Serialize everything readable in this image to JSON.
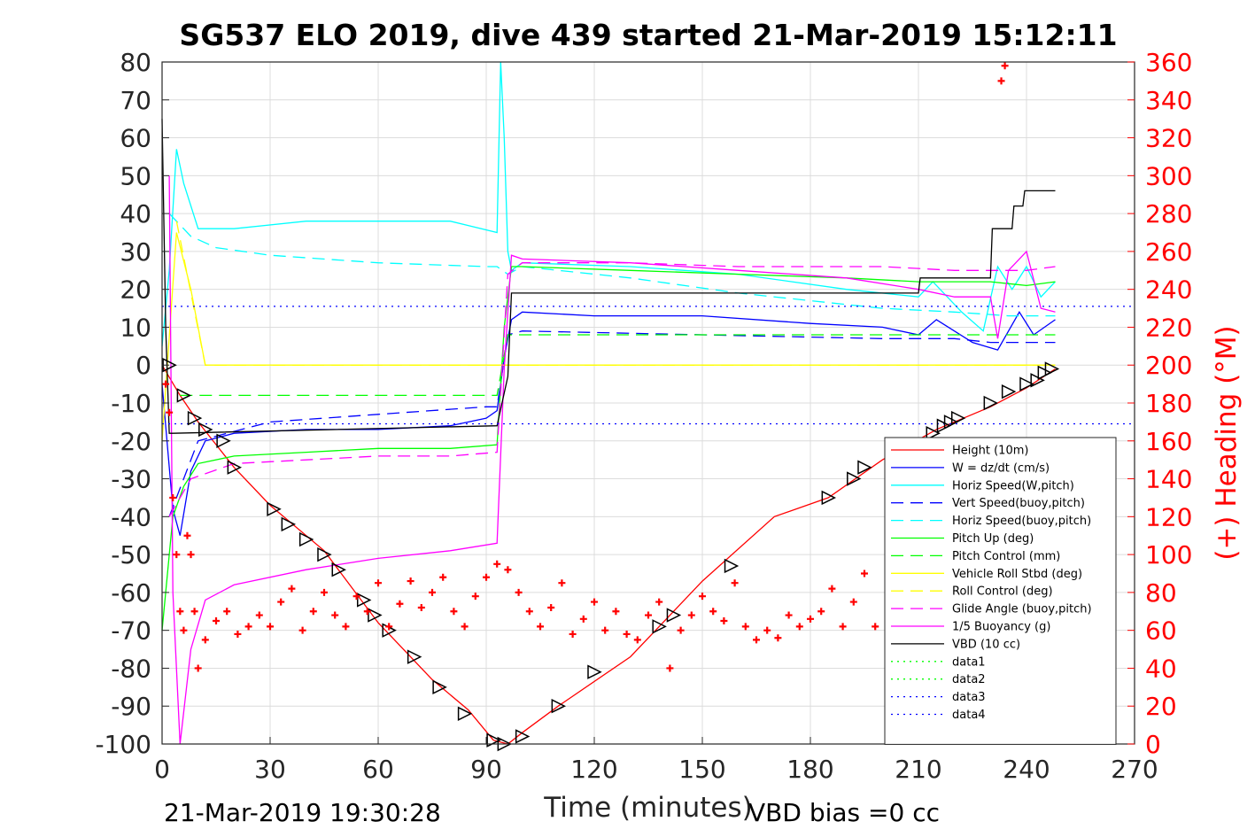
{
  "chart_data": {
    "type": "line",
    "title": "SG537 ELO 2019, dive 439 started 21-Mar-2019 15:12:11",
    "xlabel": "Time (minutes)",
    "ylabel": "",
    "y2label": "(+) Heading (°M)",
    "xlim": [
      0,
      270
    ],
    "ylim": [
      -100,
      80
    ],
    "y2lim": [
      0,
      360
    ],
    "xticks": [
      "0",
      "30",
      "60",
      "90",
      "120",
      "150",
      "180",
      "210",
      "240",
      "270"
    ],
    "yticks": [
      "80",
      "70",
      "60",
      "50",
      "40",
      "30",
      "20",
      "10",
      "0",
      "-10",
      "-20",
      "-30",
      "-40",
      "-50",
      "-60",
      "-70",
      "-80",
      "-90",
      "-100"
    ],
    "y2ticks": [
      "360",
      "340",
      "320",
      "300",
      "280",
      "260",
      "240",
      "220",
      "200",
      "180",
      "160",
      "140",
      "120",
      "100",
      "80",
      "60",
      "40",
      "20",
      "0"
    ],
    "grid": true,
    "legend_position": "lower-right",
    "colors": {
      "height": "#ff0000",
      "w": "#0000ff",
      "horiz_speed": "#00ffff",
      "green": "#00ff00",
      "yellow": "#ffff00",
      "magenta": "#ff00ff",
      "vbd": "#000000",
      "data3": "#0000ff",
      "heading_axis": "#ff0000"
    },
    "series": [
      {
        "name": "Height (10m)",
        "color": "#ff0000",
        "style": "solid",
        "x": [
          0,
          5,
          10,
          20,
          30,
          45,
          60,
          75,
          85,
          92,
          96,
          100,
          110,
          130,
          150,
          170,
          185,
          200,
          215,
          230,
          240,
          248
        ],
        "y": [
          0,
          -8,
          -15,
          -27,
          -37,
          -49,
          -68,
          -83,
          -91,
          -99,
          -100,
          -97,
          -90,
          -77,
          -57,
          -40,
          -35,
          -25,
          -17,
          -11,
          -6,
          -1
        ]
      },
      {
        "name": "W = dz/dt (cm/s)",
        "color": "#0000ff",
        "style": "solid",
        "x": [
          0,
          3,
          5,
          8,
          12,
          20,
          40,
          60,
          80,
          90,
          93,
          95,
          97,
          100,
          120,
          150,
          180,
          200,
          210,
          215,
          225,
          232,
          238,
          242,
          248
        ],
        "y": [
          -5,
          -38,
          -45,
          -28,
          -20,
          -18,
          -17,
          -17,
          -16,
          -14,
          -12,
          2,
          12,
          14,
          13,
          13,
          11,
          10,
          8,
          12,
          6,
          4,
          14,
          8,
          12
        ]
      },
      {
        "name": "Horiz Speed(W,pitch)",
        "color": "#00ffff",
        "style": "solid",
        "x": [
          0,
          2,
          4,
          6,
          10,
          20,
          40,
          60,
          80,
          93,
          94,
          95,
          96,
          97,
          100,
          130,
          160,
          190,
          210,
          214,
          222,
          228,
          232,
          236,
          240,
          244,
          248
        ],
        "y": [
          5,
          25,
          57,
          48,
          36,
          36,
          38,
          38,
          38,
          35,
          80,
          60,
          30,
          25,
          27,
          26,
          24,
          20,
          18,
          22,
          14,
          9,
          26,
          20,
          26,
          18,
          22
        ]
      },
      {
        "name": "Vert Speed(buoy,pitch)",
        "color": "#0000ff",
        "style": "dashed",
        "x": [
          2,
          10,
          30,
          60,
          90,
          93,
          96,
          100,
          150,
          200,
          212,
          220,
          230,
          240,
          248
        ],
        "y": [
          -40,
          -20,
          -15,
          -13,
          -11,
          -11,
          8,
          9,
          8,
          7,
          7,
          7,
          6,
          6,
          6
        ]
      },
      {
        "name": "Horiz Speed(buoy,pitch)",
        "color": "#00ffff",
        "style": "dashed",
        "x": [
          2,
          8,
          15,
          30,
          60,
          90,
          93,
          96,
          100,
          130,
          160,
          200,
          220,
          235,
          248
        ],
        "y": [
          40,
          34,
          31,
          29,
          27,
          26,
          26,
          24,
          26,
          23,
          19,
          15,
          14,
          13,
          13
        ]
      },
      {
        "name": "Pitch Up (deg)",
        "color": "#00ff00",
        "style": "solid",
        "x": [
          0,
          3,
          6,
          10,
          20,
          40,
          60,
          80,
          93,
          95,
          97,
          100,
          130,
          160,
          190,
          210,
          230,
          240,
          248
        ],
        "y": [
          -70,
          -40,
          -32,
          -26,
          -24,
          -23,
          -22,
          -22,
          -21,
          10,
          26,
          26,
          25,
          24,
          23,
          22,
          22,
          21,
          22
        ]
      },
      {
        "name": "Pitch Control (mm)",
        "color": "#00ff00",
        "style": "dashed",
        "x": [
          5,
          93,
          96,
          248
        ],
        "y": [
          -8,
          -8,
          8,
          8
        ]
      },
      {
        "name": "Vehicle Roll Stbd (deg)",
        "color": "#ffff00",
        "style": "solid",
        "x": [
          0,
          4,
          8,
          12,
          20,
          40,
          60,
          80,
          93,
          96,
          130,
          160,
          200,
          210,
          230,
          240,
          248
        ],
        "y": [
          -20,
          35,
          20,
          0,
          0,
          0,
          0,
          0,
          0,
          0,
          0,
          0,
          0,
          0,
          0,
          0,
          0
        ]
      },
      {
        "name": "Roll Control (deg)",
        "color": "#ffff00",
        "style": "dashed",
        "x": [
          4,
          12,
          93,
          96,
          248
        ],
        "y": [
          38,
          0,
          0,
          0,
          0
        ]
      },
      {
        "name": "Glide Angle (buoy,pitch)",
        "color": "#ff00ff",
        "style": "dashed",
        "x": [
          2,
          8,
          20,
          40,
          60,
          80,
          93,
          96,
          100,
          130,
          160,
          200,
          220,
          230,
          240,
          248
        ],
        "y": [
          -40,
          -30,
          -26,
          -25,
          -24,
          -24,
          -23,
          24,
          27,
          27,
          26,
          26,
          25,
          25,
          25,
          26
        ]
      },
      {
        "name": "1/5 Buoyancy (g)",
        "color": "#ff00ff",
        "style": "solid",
        "x": [
          2,
          3,
          5,
          8,
          12,
          20,
          40,
          60,
          80,
          93,
          95,
          97,
          100,
          130,
          160,
          190,
          210,
          220,
          230,
          232,
          235,
          240,
          244,
          248
        ],
        "y": [
          50,
          -60,
          -100,
          -75,
          -62,
          -58,
          -54,
          -51,
          -49,
          -47,
          -1,
          29,
          28,
          27,
          25,
          23,
          20,
          18,
          18,
          7,
          25,
          30,
          15,
          14
        ]
      },
      {
        "name": "VBD (10 cc)",
        "color": "#000000",
        "style": "solid",
        "x": [
          0,
          1,
          2,
          3,
          93,
          96,
          97,
          210,
          210.5,
          221,
          221.5,
          230,
          230.5,
          236,
          236.5,
          239,
          239.5,
          248
        ],
        "y": [
          65,
          10,
          -18,
          -18,
          -16,
          -3,
          19,
          19,
          23,
          23,
          23,
          23,
          36,
          36,
          42,
          42,
          46,
          46
        ]
      },
      {
        "name": "data1",
        "color": "#00ff00",
        "style": "dotted",
        "x": [],
        "y": []
      },
      {
        "name": "data2",
        "color": "#00ff00",
        "style": "dotted",
        "x": [],
        "y": []
      },
      {
        "name": "data3",
        "color": "#0000ff",
        "style": "dotted",
        "x": [
          0,
          270
        ],
        "y": [
          15.5,
          15.5
        ]
      },
      {
        "name": "data4",
        "color": "#0000ff",
        "style": "dotted",
        "x": [
          0,
          270
        ],
        "y": [
          -15.5,
          -15.5
        ]
      }
    ],
    "heading_points": {
      "axis": "right",
      "marker": "+",
      "color": "#ff0000",
      "x": [
        1,
        2,
        3,
        4,
        5,
        6,
        7,
        8,
        9,
        10,
        12,
        15,
        18,
        21,
        24,
        27,
        30,
        33,
        36,
        39,
        42,
        45,
        48,
        51,
        54,
        57,
        60,
        63,
        66,
        69,
        72,
        75,
        78,
        81,
        84,
        87,
        90,
        93,
        96,
        99,
        102,
        105,
        108,
        111,
        114,
        117,
        120,
        123,
        126,
        129,
        132,
        135,
        138,
        141,
        144,
        147,
        150,
        153,
        156,
        159,
        162,
        165,
        168,
        171,
        174,
        177,
        180,
        183,
        186,
        189,
        192,
        195,
        198,
        233,
        234
      ],
      "y": [
        190,
        175,
        130,
        100,
        70,
        60,
        110,
        100,
        70,
        40,
        55,
        65,
        70,
        58,
        62,
        68,
        62,
        75,
        82,
        60,
        70,
        80,
        68,
        62,
        78,
        70,
        85,
        62,
        74,
        86,
        72,
        80,
        88,
        70,
        62,
        78,
        88,
        95,
        92,
        80,
        70,
        62,
        72,
        85,
        58,
        66,
        75,
        60,
        70,
        58,
        55,
        68,
        75,
        40,
        60,
        68,
        78,
        70,
        65,
        85,
        62,
        55,
        60,
        56,
        68,
        62,
        66,
        70,
        82,
        62,
        75,
        90,
        62,
        350,
        358
      ]
    },
    "vbd_markers": {
      "marker": "triangle",
      "color": "#000000",
      "x": [
        2,
        6,
        9,
        12,
        17,
        20,
        31,
        35,
        40,
        45,
        49,
        56,
        59,
        63,
        70,
        77,
        84,
        92,
        95,
        100,
        110,
        120,
        138,
        142,
        158,
        185,
        192,
        195,
        214,
        217,
        219,
        221,
        230,
        235,
        240,
        243,
        245,
        247
      ],
      "y": [
        0,
        -8,
        -14,
        -17,
        -20,
        -27,
        -38,
        -42,
        -46,
        -50,
        -54,
        -62,
        -66,
        -70,
        -77,
        -85,
        -92,
        -99,
        -100,
        -98,
        -90,
        -81,
        -69,
        -66,
        -53,
        -35,
        -30,
        -27,
        -18,
        -16,
        -15,
        -14,
        -10,
        -7,
        -5,
        -4,
        -2,
        -1
      ]
    },
    "annotations": {
      "start_time": "21-Mar-2019 19:30:28",
      "vbd_bias": "VBD bias =0 cc"
    }
  }
}
